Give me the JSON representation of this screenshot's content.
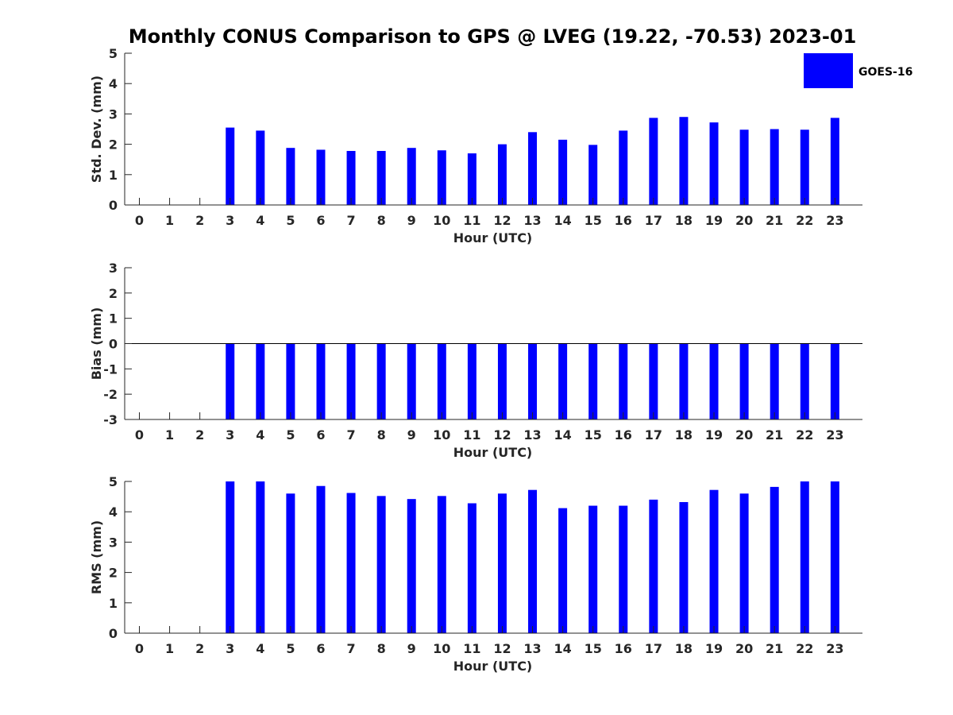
{
  "title": "Monthly CONUS Comparison to GPS @ LVEG (19.22, -70.53) 2023-01",
  "legend": {
    "label": "GOES-16",
    "color": "#0000ff"
  },
  "chart_data": [
    {
      "type": "bar",
      "xlabel": "Hour (UTC)",
      "ylabel": "Std. Dev. (mm)",
      "ylim": [
        0,
        5
      ],
      "yticks": [
        0,
        1,
        2,
        3,
        4,
        5
      ],
      "categories": [
        0,
        1,
        2,
        3,
        4,
        5,
        6,
        7,
        8,
        9,
        10,
        11,
        12,
        13,
        14,
        15,
        16,
        17,
        18,
        19,
        20,
        21,
        22,
        23
      ],
      "series": [
        {
          "name": "GOES-16",
          "values": [
            null,
            null,
            null,
            2.55,
            2.45,
            1.88,
            1.82,
            1.78,
            1.78,
            1.88,
            1.8,
            1.7,
            2.0,
            2.4,
            2.15,
            1.98,
            2.45,
            2.87,
            2.9,
            2.72,
            2.48,
            2.5,
            2.48,
            2.87
          ]
        }
      ],
      "grid": false
    },
    {
      "type": "bar",
      "xlabel": "Hour (UTC)",
      "ylabel": "Bias (mm)",
      "ylim": [
        -3,
        3
      ],
      "yticks": [
        -3,
        -2,
        -1,
        0,
        1,
        2,
        3
      ],
      "categories": [
        0,
        1,
        2,
        3,
        4,
        5,
        6,
        7,
        8,
        9,
        10,
        11,
        12,
        13,
        14,
        15,
        16,
        17,
        18,
        19,
        20,
        21,
        22,
        23
      ],
      "series": [
        {
          "name": "GOES-16",
          "values": [
            null,
            null,
            null,
            -3.1,
            -3.1,
            -3.1,
            -3.1,
            -3.1,
            -3.1,
            -3.1,
            -3.1,
            -3.1,
            -3.1,
            -3.1,
            -3.1,
            -3.1,
            -3.1,
            -3.1,
            -3.1,
            -3.1,
            -3.1,
            -3.1,
            -3.1,
            -3.1
          ]
        }
      ],
      "zero_line": true,
      "grid": false
    },
    {
      "type": "bar",
      "xlabel": "Hour (UTC)",
      "ylabel": "RMS (mm)",
      "ylim": [
        0,
        5
      ],
      "yticks": [
        0,
        1,
        2,
        3,
        4,
        5
      ],
      "categories": [
        0,
        1,
        2,
        3,
        4,
        5,
        6,
        7,
        8,
        9,
        10,
        11,
        12,
        13,
        14,
        15,
        16,
        17,
        18,
        19,
        20,
        21,
        22,
        23
      ],
      "series": [
        {
          "name": "GOES-16",
          "values": [
            null,
            null,
            null,
            5.0,
            5.0,
            4.6,
            4.85,
            4.62,
            4.52,
            4.42,
            4.52,
            4.28,
            4.6,
            4.72,
            4.12,
            4.2,
            4.2,
            4.4,
            4.32,
            4.72,
            4.6,
            4.82,
            5.0,
            5.0
          ]
        }
      ],
      "grid": false
    }
  ]
}
